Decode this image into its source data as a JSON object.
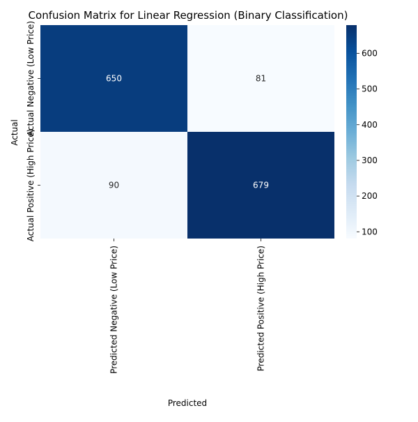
{
  "chart_data": {
    "type": "heatmap",
    "title": "Confusion Matrix for Linear Regression (Binary Classification)",
    "xlabel": "Predicted",
    "ylabel": "Actual",
    "x_categories": [
      "Predicted Negative (Low Price)",
      "Predicted Positive (High Price)"
    ],
    "y_categories": [
      "Actual Negative (Low Price)",
      "Actual Positive (High Price)"
    ],
    "values": [
      [
        650,
        81
      ],
      [
        90,
        679
      ]
    ],
    "colorbar": {
      "ticks": [
        100,
        200,
        300,
        400,
        500,
        600
      ],
      "range": [
        81,
        679
      ],
      "colormap": "Blues"
    },
    "cell_label_colors": {
      "dark": "#ffffff",
      "light": "#262626"
    }
  }
}
